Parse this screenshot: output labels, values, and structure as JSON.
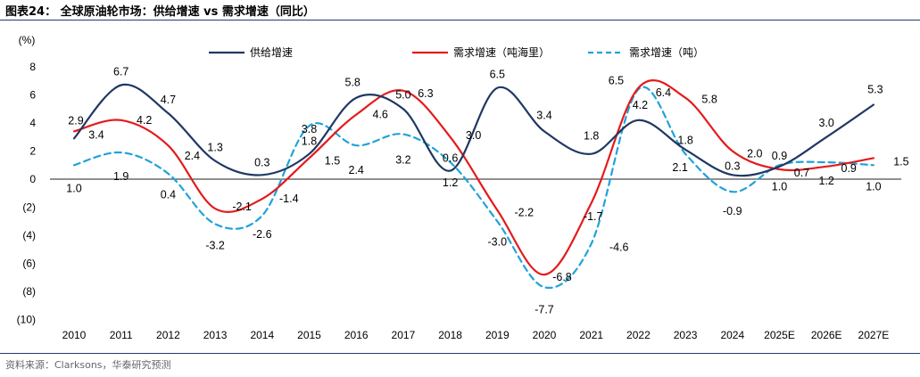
{
  "page": {
    "title": "图表24：  全球原油轮市场：供给增速 vs 需求增速（同比）",
    "source": "资料来源：Clarksons，华泰研究预测"
  },
  "chart_data": {
    "type": "line",
    "yunit": "(%)",
    "ylim": [
      -10,
      8
    ],
    "yticks": [
      {
        "v": 8,
        "label": "8"
      },
      {
        "v": 6,
        "label": "6"
      },
      {
        "v": 4,
        "label": "4"
      },
      {
        "v": 2,
        "label": "2"
      },
      {
        "v": 0,
        "label": "0"
      },
      {
        "v": -2,
        "label": "(2)"
      },
      {
        "v": -4,
        "label": "(4)"
      },
      {
        "v": -6,
        "label": "(6)"
      },
      {
        "v": -8,
        "label": "(8)"
      },
      {
        "v": -10,
        "label": "(10)"
      }
    ],
    "categories": [
      "2010",
      "2011",
      "2012",
      "2013",
      "2014",
      "2015",
      "2016",
      "2017",
      "2018",
      "2019",
      "2020",
      "2021",
      "2022",
      "2023",
      "2024",
      "2025E",
      "2026E",
      "2027E"
    ],
    "legend_position": "top",
    "grid": false,
    "series": [
      {
        "name": "供给增速",
        "color": "#1f3864",
        "dash": "",
        "values": [
          2.9,
          6.7,
          4.7,
          1.3,
          0.3,
          1.8,
          5.8,
          5.0,
          0.6,
          6.5,
          3.4,
          1.8,
          4.2,
          2.1,
          0.3,
          0.9,
          3.0,
          5.3
        ]
      },
      {
        "name": "需求增速（吨海里）",
        "color": "#e41a1c",
        "dash": "",
        "values": [
          3.4,
          4.2,
          2.4,
          -2.1,
          -1.4,
          1.5,
          4.6,
          6.3,
          3.0,
          -2.2,
          -6.8,
          -1.7,
          6.5,
          5.8,
          2.0,
          0.7,
          0.9,
          1.5
        ]
      },
      {
        "name": "需求增速（吨）",
        "color": "#1fa3d9",
        "dash": "7,5",
        "values": [
          1.0,
          1.9,
          0.4,
          -3.2,
          -2.6,
          3.8,
          2.4,
          3.2,
          1.2,
          -3.0,
          -7.7,
          -4.6,
          6.4,
          1.8,
          -0.9,
          1.0,
          1.2,
          1.0
        ]
      }
    ],
    "labels": [
      {
        "s": 0,
        "i": 0,
        "text": "2.9",
        "dx": 2,
        "dy": -20
      },
      {
        "s": 0,
        "i": 1,
        "text": "6.7",
        "dx": 0,
        "dy": -15
      },
      {
        "s": 0,
        "i": 2,
        "text": "4.7",
        "dx": 0,
        "dy": -15
      },
      {
        "s": 0,
        "i": 3,
        "text": "1.3",
        "dx": 0,
        "dy": -15
      },
      {
        "s": 0,
        "i": 4,
        "text": "0.3",
        "dx": 0,
        "dy": -14
      },
      {
        "s": 0,
        "i": 5,
        "text": "1.8",
        "dx": 0,
        "dy": -14
      },
      {
        "s": 0,
        "i": 6,
        "text": "5.8",
        "dx": -4,
        "dy": -17
      },
      {
        "s": 0,
        "i": 7,
        "text": "5.0",
        "dx": 0,
        "dy": -16
      },
      {
        "s": 0,
        "i": 8,
        "text": "0.6",
        "dx": 0,
        "dy": -14
      },
      {
        "s": 0,
        "i": 9,
        "text": "6.5",
        "dx": 0,
        "dy": -15
      },
      {
        "s": 0,
        "i": 10,
        "text": "3.4",
        "dx": 0,
        "dy": -18
      },
      {
        "s": 0,
        "i": 11,
        "text": "1.8",
        "dx": 0,
        "dy": -20
      },
      {
        "s": 0,
        "i": 12,
        "text": "4.2",
        "dx": 2,
        "dy": -17
      },
      {
        "s": 0,
        "i": 13,
        "text": "2.1",
        "dx": -6,
        "dy": 20
      },
      {
        "s": 0,
        "i": 14,
        "text": "0.3",
        "dx": 0,
        "dy": -10
      },
      {
        "s": 0,
        "i": 15,
        "text": "0.9",
        "dx": 0,
        "dy": -12
      },
      {
        "s": 0,
        "i": 16,
        "text": "3.0",
        "dx": 0,
        "dy": -16
      },
      {
        "s": 0,
        "i": 17,
        "text": "5.3",
        "dx": 2,
        "dy": -17
      },
      {
        "s": 1,
        "i": 0,
        "text": "3.4",
        "dx": 25,
        "dy": 4
      },
      {
        "s": 1,
        "i": 1,
        "text": "4.2",
        "dx": 26,
        "dy": 0
      },
      {
        "s": 1,
        "i": 2,
        "text": "2.4",
        "dx": 27,
        "dy": 12
      },
      {
        "s": 1,
        "i": 3,
        "text": "-2.1",
        "dx": 30,
        "dy": -2
      },
      {
        "s": 1,
        "i": 4,
        "text": "-1.4",
        "dx": 30,
        "dy": 0
      },
      {
        "s": 1,
        "i": 5,
        "text": "1.5",
        "dx": 26,
        "dy": 3
      },
      {
        "s": 1,
        "i": 6,
        "text": "4.6",
        "dx": 27,
        "dy": 0
      },
      {
        "s": 1,
        "i": 7,
        "text": "6.3",
        "dx": 25,
        "dy": 3
      },
      {
        "s": 1,
        "i": 8,
        "text": "3.0",
        "dx": 26,
        "dy": -2
      },
      {
        "s": 1,
        "i": 9,
        "text": "-2.2",
        "dx": 30,
        "dy": 3
      },
      {
        "s": 1,
        "i": 10,
        "text": "-6.8",
        "dx": 20,
        "dy": 3
      },
      {
        "s": 1,
        "i": 11,
        "text": "-1.7",
        "dx": 2,
        "dy": 15
      },
      {
        "s": 1,
        "i": 12,
        "text": "6.5",
        "dx": -25,
        "dy": -8
      },
      {
        "s": 1,
        "i": 13,
        "text": "5.8",
        "dx": 27,
        "dy": 2
      },
      {
        "s": 1,
        "i": 14,
        "text": "2.0",
        "dx": 25,
        "dy": 3
      },
      {
        "s": 1,
        "i": 15,
        "text": "0.7",
        "dx": 25,
        "dy": 4
      },
      {
        "s": 1,
        "i": 16,
        "text": "0.9",
        "dx": 25,
        "dy": 2
      },
      {
        "s": 1,
        "i": 17,
        "text": "1.5",
        "dx": 31,
        "dy": 4
      },
      {
        "s": 2,
        "i": 0,
        "text": "1.0",
        "dx": 0,
        "dy": 26
      },
      {
        "s": 2,
        "i": 1,
        "text": "1.9",
        "dx": 0,
        "dy": 27
      },
      {
        "s": 2,
        "i": 2,
        "text": "0.4",
        "dx": 0,
        "dy": 24
      },
      {
        "s": 2,
        "i": 3,
        "text": "-3.2",
        "dx": 0,
        "dy": 24
      },
      {
        "s": 2,
        "i": 4,
        "text": "-2.6",
        "dx": 0,
        "dy": 21
      },
      {
        "s": 2,
        "i": 5,
        "text": "3.8",
        "dx": 0,
        "dy": 4
      },
      {
        "s": 2,
        "i": 6,
        "text": "2.4",
        "dx": 0,
        "dy": 28
      },
      {
        "s": 2,
        "i": 7,
        "text": "3.2",
        "dx": 0,
        "dy": 29
      },
      {
        "s": 2,
        "i": 8,
        "text": "1.2",
        "dx": 0,
        "dy": 23
      },
      {
        "s": 2,
        "i": 9,
        "text": "-3.0",
        "dx": 0,
        "dy": 23
      },
      {
        "s": 2,
        "i": 10,
        "text": "-7.7",
        "dx": 0,
        "dy": 25
      },
      {
        "s": 2,
        "i": 11,
        "text": "-4.6",
        "dx": 31,
        "dy": 4
      },
      {
        "s": 2,
        "i": 12,
        "text": "6.4",
        "dx": 28,
        "dy": 4
      },
      {
        "s": 2,
        "i": 13,
        "text": "1.8",
        "dx": 0,
        "dy": -15
      },
      {
        "s": 2,
        "i": 14,
        "text": "-0.9",
        "dx": 0,
        "dy": 22
      },
      {
        "s": 2,
        "i": 15,
        "text": "1.0",
        "dx": 0,
        "dy": 24
      },
      {
        "s": 2,
        "i": 16,
        "text": "1.2",
        "dx": 0,
        "dy": 21
      },
      {
        "s": 2,
        "i": 17,
        "text": "1.0",
        "dx": 0,
        "dy": 24
      }
    ]
  }
}
